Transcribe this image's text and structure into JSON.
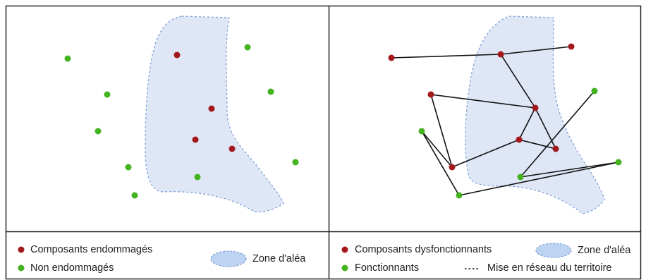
{
  "colors": {
    "damaged": "#a3181b",
    "healthy": "#44b320",
    "zone_fill": "#dfe7f6",
    "zone_stroke": "#7da2d8",
    "zone_legend_fill": "#bdd3f2",
    "edge": "#111111",
    "frame": "#222222"
  },
  "left_panel": {
    "damaged_points": 4,
    "healthy_points": 10,
    "legend": {
      "damaged_label": "Composants endommagés",
      "healthy_label": "Non endommagés",
      "zone_label": "Zone d'aléa"
    }
  },
  "right_panel": {
    "network": {
      "nodes": [
        "A",
        "B",
        "C",
        "D",
        "E",
        "F",
        "G",
        "H",
        "I",
        "J",
        "K",
        "L",
        "M"
      ],
      "damaged_nodes": [
        "A",
        "B",
        "C",
        "D",
        "E",
        "F",
        "G",
        "H"
      ],
      "functional_nodes": [
        "I",
        "J",
        "K",
        "L",
        "M"
      ],
      "links": [
        [
          "A",
          "B"
        ],
        [
          "B",
          "C"
        ],
        [
          "B",
          "E"
        ],
        [
          "D",
          "E"
        ],
        [
          "D",
          "H"
        ],
        [
          "E",
          "F"
        ],
        [
          "E",
          "G"
        ],
        [
          "F",
          "G"
        ],
        [
          "F",
          "H"
        ],
        [
          "J",
          "I"
        ],
        [
          "J",
          "L"
        ],
        [
          "L",
          "K"
        ],
        [
          "M",
          "K"
        ],
        [
          "I",
          "H"
        ]
      ]
    },
    "legend": {
      "damaged_label": "Composants dysfonctionnants",
      "healthy_label": "Fonctionnants",
      "zone_label": "Zone d'aléa",
      "network_label": "Mise en réseau du territoire"
    }
  }
}
